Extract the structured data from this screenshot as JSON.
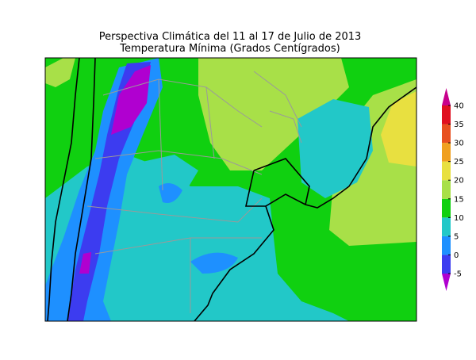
{
  "title": "Perspectiva Climática del 11 al 17 de Julio de 2013",
  "subtitle": "Temperatura Mínima (Grados Centígrados)",
  "colorbar": {
    "ticks": [
      -5,
      0,
      5,
      10,
      15,
      20,
      25,
      30,
      35,
      40
    ],
    "colors": [
      "#b000d0",
      "#3c3cf0",
      "#1e90ff",
      "#22c8c8",
      "#10d010",
      "#a8e048",
      "#e8e040",
      "#f0a020",
      "#e85020",
      "#e01020",
      "#c8008c"
    ]
  }
}
